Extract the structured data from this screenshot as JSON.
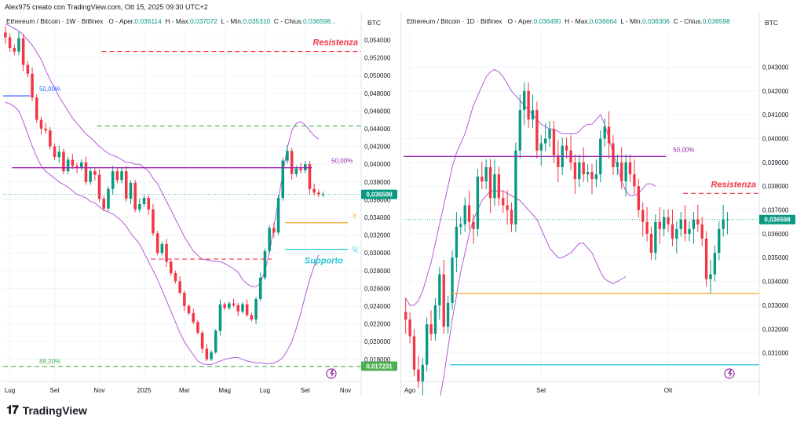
{
  "header": {
    "attribution": "Alex975 creato con TradingView.com, Ott 15, 2025 09:30 UTC+2"
  },
  "footer": {
    "brand": "TradingView",
    "brand_mark": "𝟏𝟕"
  },
  "colors": {
    "up": "#089981",
    "down": "#f23645",
    "resistance": "#f23645",
    "support": "#22c5d4",
    "fib50": "#9c27b0",
    "bollinger": "#b25bd6",
    "orange": "#f5a623",
    "fib88": "#4caf50"
  },
  "chart_data": [
    {
      "type": "candlestick",
      "title": "Ethereum / Bitcoin · 1W · Bitfinex",
      "ohlc_labels": {
        "o": "O - Aper.",
        "h": "H - Max.",
        "l": "L - Min.",
        "c": "C - Chius."
      },
      "ohlc": {
        "o": "0,036114",
        "h": "0,037072",
        "l": "0,035310",
        "c": "0,036598..."
      },
      "unit": "BTC",
      "ylim": [
        0.0155,
        0.0555
      ],
      "y_ticks": [
        "0,054000",
        "0,052000",
        "0,050000",
        "0,048000",
        "0,046000",
        "0,044000",
        "0,042000",
        "0,040000",
        "0,038000",
        "0,036000",
        "0,034000",
        "0,032000",
        "0,030000",
        "0,028000",
        "0,026000",
        "0,024000",
        "0,022000",
        "0,020000",
        "0,018000"
      ],
      "y_tick_values": [
        0.054,
        0.052,
        0.05,
        0.048,
        0.046,
        0.044,
        0.042,
        0.04,
        0.038,
        0.036,
        0.034,
        0.032,
        0.03,
        0.028,
        0.026,
        0.024,
        0.022,
        0.02,
        0.018
      ],
      "x_labels": [
        "Lug",
        "Set",
        "Nov",
        "2025",
        "Mar",
        "Mag",
        "Lug",
        "Set",
        "Nov"
      ],
      "x_label_index": [
        1,
        11,
        21,
        31,
        40,
        49,
        58,
        67,
        76
      ],
      "n_bars": 80,
      "current_price_label": "0,036598",
      "current_price": 0.036598,
      "low_label": "0,017231",
      "low_value": 0.017231,
      "levels": [
        {
          "name": "Resistenza",
          "label": "Resistenza",
          "value": 0.0527,
          "style": "dash",
          "color": "#f23645",
          "from": 22,
          "to": 80
        },
        {
          "name": "green-dash",
          "value": 0.0443,
          "style": "dash",
          "color": "#4caf50",
          "from": 21,
          "to": 80
        },
        {
          "name": "fib50",
          "label": "50,00%",
          "value": 0.0396,
          "style": "solid",
          "color": "#9c27b0",
          "from": 2,
          "to": 69
        },
        {
          "name": "red-dash-low",
          "value": 0.0293,
          "style": "dash",
          "color": "#f23645",
          "from": 33,
          "to": 60
        },
        {
          "name": "orange",
          "label": "3",
          "value": 0.0334,
          "style": "solid",
          "color": "#f5a623",
          "from": 63,
          "to": 77
        },
        {
          "name": "Supporto",
          "label": "Supporto",
          "value": 0.0304,
          "style": "solid",
          "color": "#22c5d4",
          "from": 63,
          "to": 77,
          "tag": "5("
        },
        {
          "name": "fib88",
          "label": "88,20%",
          "value": 0.0172,
          "style": "dash",
          "color": "#4caf50",
          "from": 0,
          "to": 80
        },
        {
          "name": "fib50-left",
          "label": "50,00%",
          "value": 0.0477,
          "style": "solid",
          "color": "#2962ff",
          "from": 0,
          "to": 6
        }
      ],
      "closes": [
        0.0543,
        0.0531,
        0.0527,
        0.0542,
        0.0512,
        0.0502,
        0.0475,
        0.045,
        0.044,
        0.0438,
        0.042,
        0.0408,
        0.0414,
        0.0392,
        0.0405,
        0.0398,
        0.0396,
        0.0402,
        0.038,
        0.0392,
        0.0388,
        0.0361,
        0.035,
        0.0372,
        0.0392,
        0.0382,
        0.0392,
        0.0361,
        0.0379,
        0.0349,
        0.0355,
        0.0362,
        0.0349,
        0.0322,
        0.03,
        0.031,
        0.029,
        0.0277,
        0.0268,
        0.0255,
        0.024,
        0.0232,
        0.0222,
        0.021,
        0.0192,
        0.018,
        0.0188,
        0.0212,
        0.0242,
        0.0238,
        0.0243,
        0.0241,
        0.0234,
        0.0242,
        0.023,
        0.0225,
        0.0248,
        0.0272,
        0.0302,
        0.0328,
        0.0323,
        0.0362,
        0.0404,
        0.0415,
        0.0389,
        0.0395,
        0.0393,
        0.04,
        0.0372,
        0.0368,
        0.0366,
        0.0366
      ],
      "bollinger_upper": [
        0.0558,
        0.0556,
        0.0553,
        0.055,
        0.0546,
        0.054,
        0.0534,
        0.0526,
        0.0518,
        0.0506,
        0.0495,
        0.0486,
        0.0476,
        0.0468,
        0.046,
        0.0452,
        0.0446,
        0.044,
        0.0434,
        0.043,
        0.0425,
        0.042,
        0.0416,
        0.0412,
        0.041,
        0.0408,
        0.0405,
        0.0402,
        0.0402,
        0.04,
        0.04,
        0.0396,
        0.0392,
        0.0384,
        0.0378,
        0.0368,
        0.0358,
        0.0348,
        0.0338,
        0.0328,
        0.0318,
        0.031,
        0.0302,
        0.0297,
        0.0293,
        0.0292,
        0.0291,
        0.029,
        0.029,
        0.0288,
        0.0285,
        0.0282,
        0.0278,
        0.027,
        0.0265,
        0.0262,
        0.0262,
        0.0266,
        0.028,
        0.03,
        0.033,
        0.036,
        0.039,
        0.0418,
        0.0438,
        0.0446,
        0.0448,
        0.0444,
        0.0438,
        0.0432,
        0.0428
      ],
      "bollinger_lower": [
        0.047,
        0.0468,
        0.0465,
        0.046,
        0.0448,
        0.0434,
        0.042,
        0.0408,
        0.0398,
        0.0392,
        0.0388,
        0.0384,
        0.038,
        0.0377,
        0.0374,
        0.037,
        0.0366,
        0.0364,
        0.0362,
        0.0358,
        0.0356,
        0.0352,
        0.0348,
        0.0346,
        0.0344,
        0.034,
        0.0336,
        0.033,
        0.0322,
        0.0316,
        0.031,
        0.03,
        0.029,
        0.028,
        0.027,
        0.0258,
        0.0246,
        0.0234,
        0.0222,
        0.021,
        0.02,
        0.0192,
        0.0185,
        0.0178,
        0.0175,
        0.0174,
        0.0174,
        0.0176,
        0.0178,
        0.018,
        0.0181,
        0.0182,
        0.0182,
        0.018,
        0.0178,
        0.0177,
        0.0176,
        0.0176,
        0.0175,
        0.0175,
        0.0176,
        0.0178,
        0.0182,
        0.019,
        0.02,
        0.0215,
        0.0232,
        0.0252,
        0.027,
        0.0285,
        0.0298
      ]
    },
    {
      "type": "candlestick",
      "title": "Ethereum / Bitcoin · 1D · Bitfinex",
      "ohlc_labels": {
        "o": "O - Aper.",
        "h": "H - Max.",
        "l": "L - Min.",
        "c": "C - Chius."
      },
      "ohlc": {
        "o": "0,036490",
        "h": "0,036664",
        "l": "0,036306",
        "c": "0,036598"
      },
      "unit": "BTC",
      "ylim": [
        0.0298,
        0.0445
      ],
      "y_ticks": [
        "0,043000",
        "0,042000",
        "0,041000",
        "0,040000",
        "0,039000",
        "0,038000",
        "0,037000",
        "0,036000",
        "0,035000",
        "0,034000",
        "0,033000",
        "0,032000",
        "0,031000"
      ],
      "y_tick_values": [
        0.043,
        0.042,
        0.041,
        0.04,
        0.039,
        0.038,
        0.037,
        0.036,
        0.035,
        0.034,
        0.033,
        0.032,
        0.031
      ],
      "x_labels": [
        "Ago",
        "Set",
        "Ott"
      ],
      "x_label_index": [
        1,
        32,
        62
      ],
      "n_bars": 84,
      "current_price_label": "0,036598",
      "current_price": 0.036598,
      "levels": [
        {
          "name": "Resistenza",
          "label": "Resistenza",
          "value": 0.0377,
          "style": "dash",
          "color": "#f23645",
          "from": 66,
          "to": 84
        },
        {
          "name": "fib50",
          "label": "50,00%",
          "value": 0.03925,
          "style": "solid",
          "color": "#9c27b0",
          "from": 0,
          "to": 62
        },
        {
          "name": "orange",
          "value": 0.0335,
          "style": "solid",
          "color": "#f5a623",
          "from": 11,
          "to": 84
        },
        {
          "name": "cyan",
          "value": 0.0305,
          "style": "solid",
          "color": "#22c5d4",
          "from": 11,
          "to": 84
        }
      ],
      "closes": [
        0.0324,
        0.0317,
        0.0303,
        0.0298,
        0.0305,
        0.0322,
        0.0318,
        0.033,
        0.0343,
        0.0321,
        0.0331,
        0.035,
        0.0363,
        0.0364,
        0.0372,
        0.0365,
        0.0362,
        0.0384,
        0.0382,
        0.0388,
        0.0375,
        0.0385,
        0.0375,
        0.0372,
        0.037,
        0.0364,
        0.0395,
        0.0412,
        0.042,
        0.0408,
        0.0412,
        0.0395,
        0.0398,
        0.04,
        0.0404,
        0.0393,
        0.0388,
        0.0397,
        0.0395,
        0.039,
        0.0383,
        0.039,
        0.0385,
        0.0386,
        0.0383,
        0.0385,
        0.04,
        0.0405,
        0.0398,
        0.0388,
        0.039,
        0.0382,
        0.039,
        0.0385,
        0.038,
        0.037,
        0.0365,
        0.036,
        0.0352,
        0.0365,
        0.0362,
        0.0367,
        0.0364,
        0.0358,
        0.0362,
        0.0366,
        0.036,
        0.0362,
        0.0366,
        0.0364,
        0.0358,
        0.0341,
        0.0343,
        0.0352,
        0.0362,
        0.0366,
        0.0366
      ],
      "bollinger_upper": [
        0.0333,
        0.033,
        0.033,
        0.0332,
        0.0336,
        0.0342,
        0.0348,
        0.0356,
        0.0364,
        0.0372,
        0.038,
        0.0388,
        0.0394,
        0.0398,
        0.0402,
        0.0408,
        0.0414,
        0.0418,
        0.0422,
        0.0426,
        0.0428,
        0.0429,
        0.0428,
        0.0426,
        0.0423,
        0.042,
        0.0418,
        0.0416,
        0.0414,
        0.0412,
        0.041,
        0.0408,
        0.0406,
        0.0405,
        0.0404,
        0.0404,
        0.0403,
        0.0402,
        0.0402,
        0.0402,
        0.0402,
        0.0403,
        0.0405,
        0.0406,
        0.0406,
        0.0408,
        0.041,
        0.0406,
        0.04,
        0.0394,
        0.0388,
        0.0382,
        0.0378,
        0.0376,
        0.0376,
        0.0377,
        0.0379,
        0.0381,
        0.0381,
        0.038
      ],
      "bollinger_lower": [
        0.0288,
        0.0284,
        0.028,
        0.0278,
        0.0276,
        0.0276,
        0.0278,
        0.0282,
        0.029,
        0.03,
        0.0312,
        0.0324,
        0.0334,
        0.0344,
        0.0352,
        0.036,
        0.0366,
        0.037,
        0.0374,
        0.0376,
        0.0378,
        0.0378,
        0.0378,
        0.0378,
        0.0377,
        0.0376,
        0.0375,
        0.0374,
        0.0372,
        0.037,
        0.0368,
        0.0366,
        0.0362,
        0.0358,
        0.0354,
        0.0352,
        0.035,
        0.035,
        0.0351,
        0.0352,
        0.0354,
        0.0356,
        0.0356,
        0.0354,
        0.0352,
        0.0348,
        0.0344,
        0.0341,
        0.034,
        0.0339,
        0.034,
        0.0341,
        0.0342
      ]
    }
  ]
}
